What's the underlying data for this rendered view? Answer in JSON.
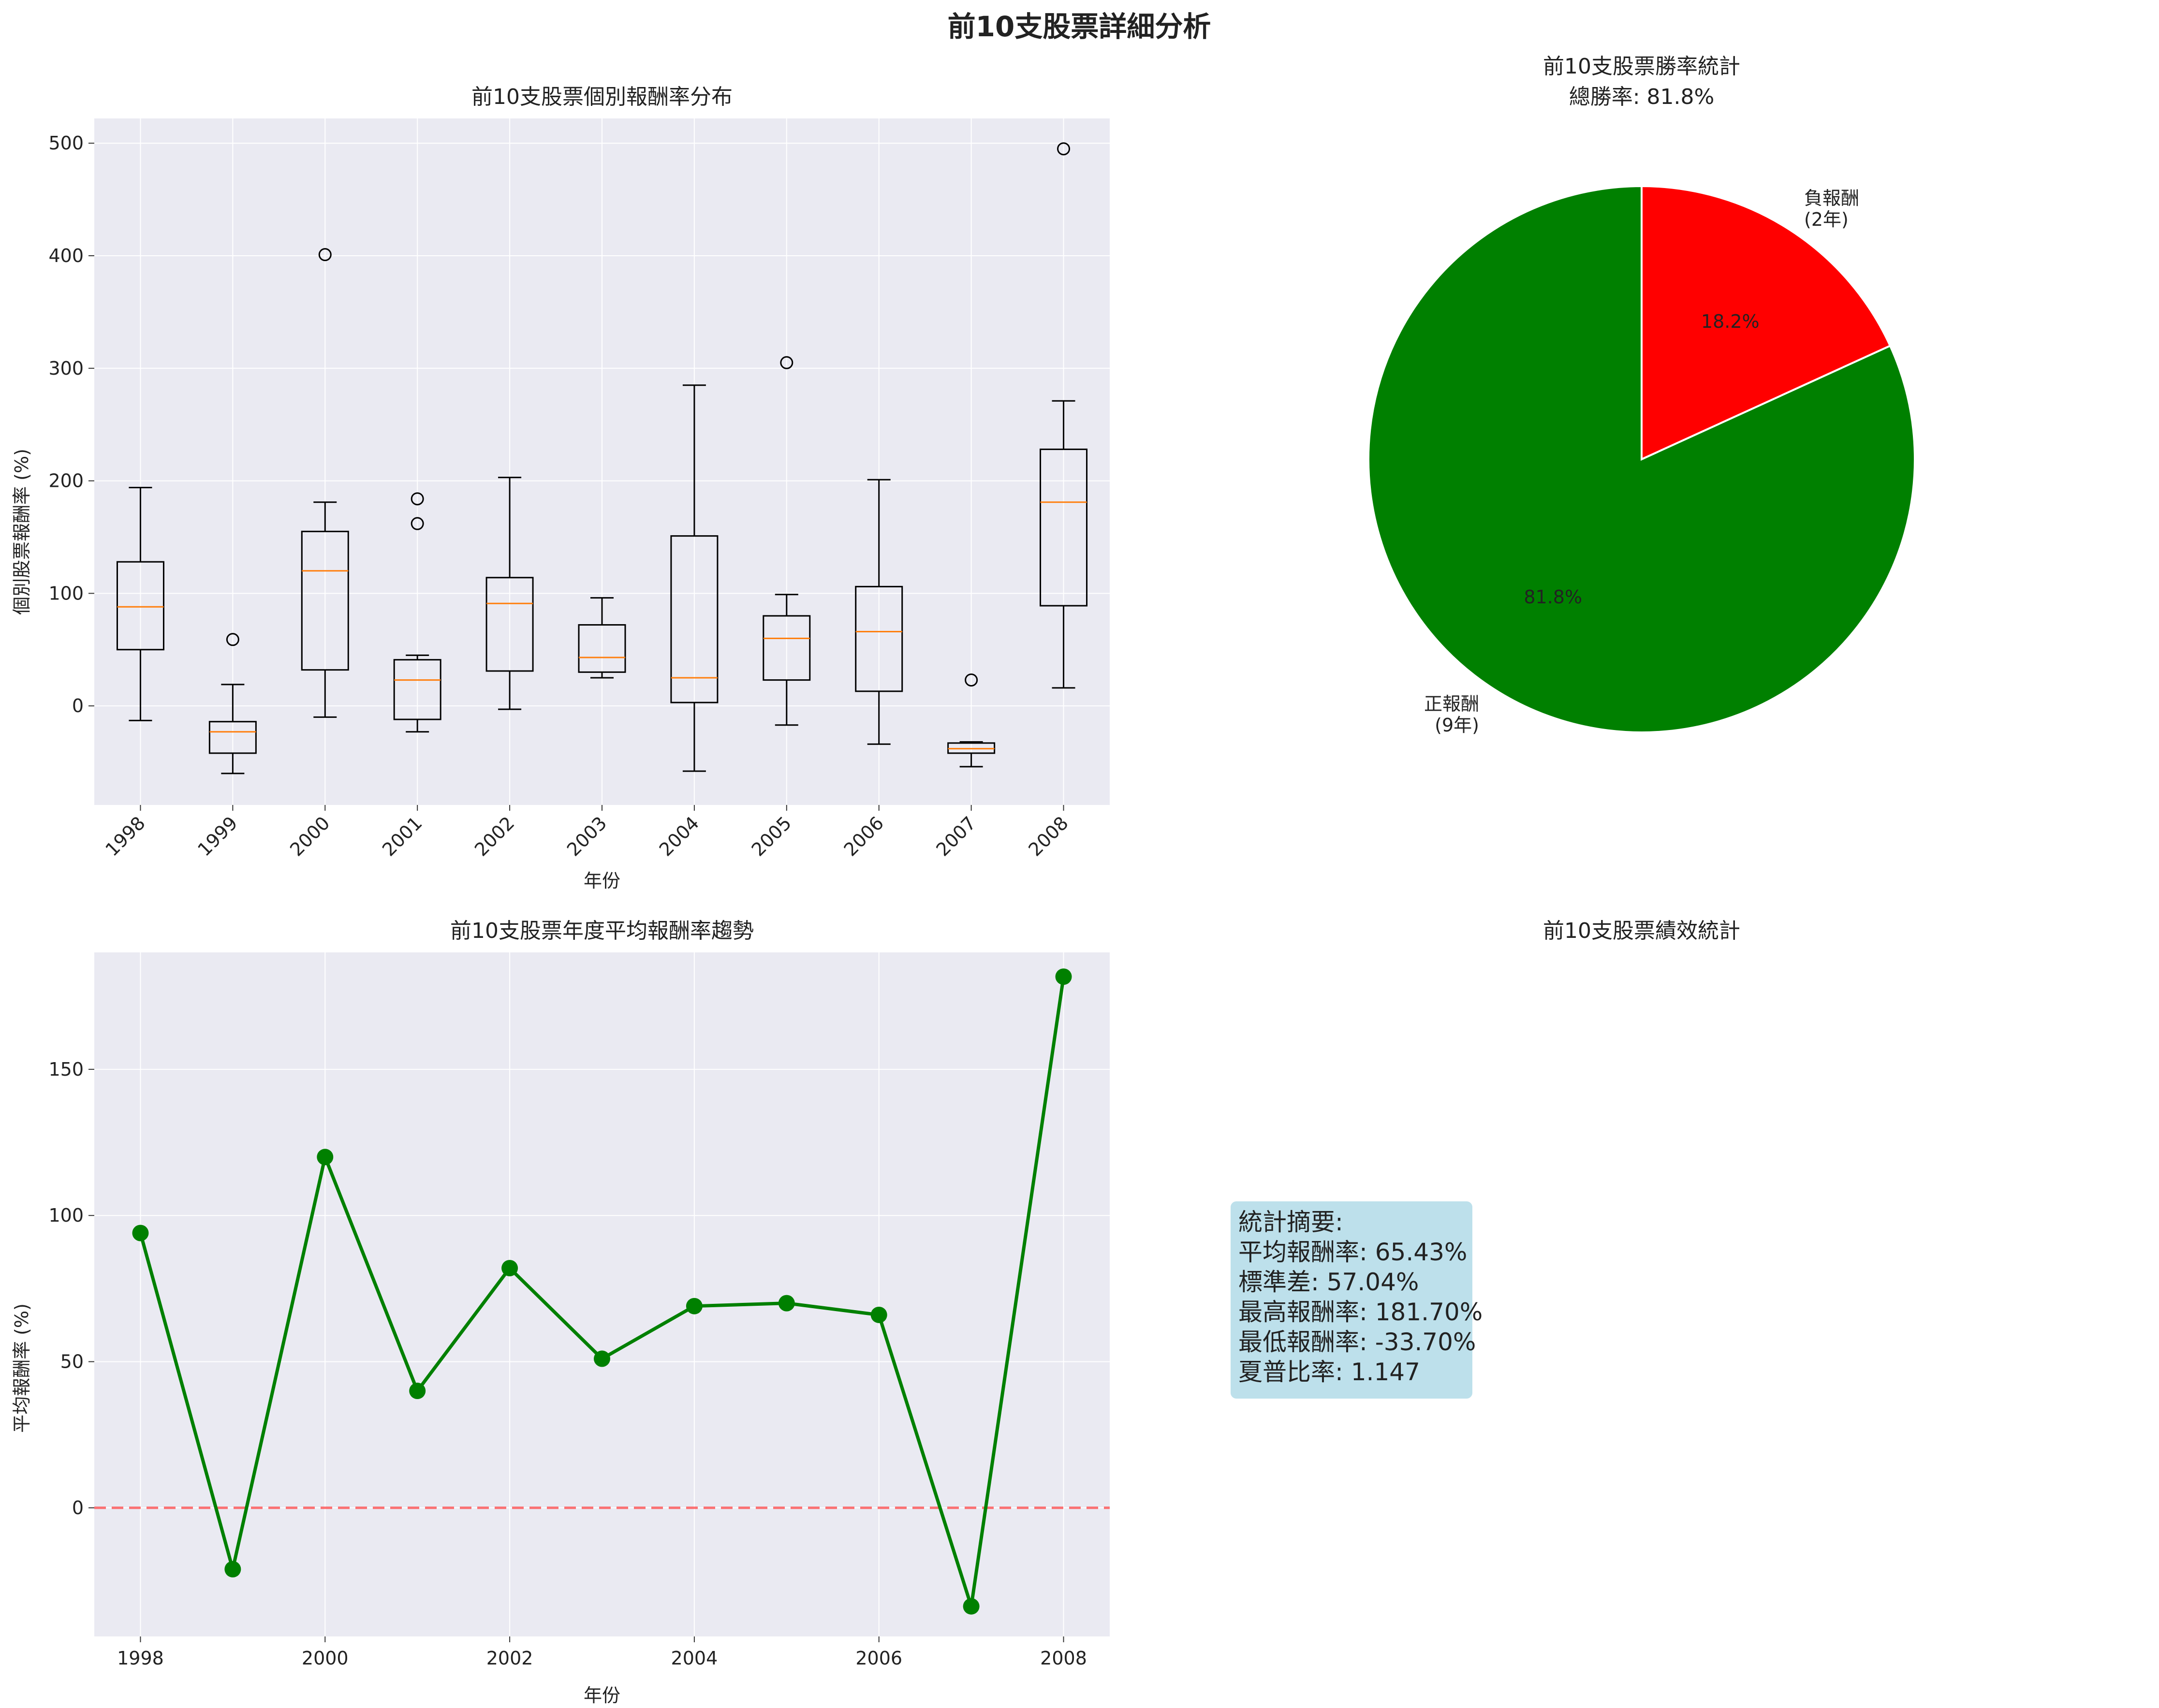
{
  "suptitle": "前10支股票詳細分析",
  "chart_data": [
    {
      "type": "box",
      "title": "前10支股票個別報酬率分布",
      "xlabel": "年份",
      "ylabel": "個別股票報酬率 (%)",
      "ylim": [
        -88,
        522
      ],
      "yticks": [
        0,
        100,
        200,
        300,
        400,
        500
      ],
      "categories": [
        "1998",
        "1999",
        "2000",
        "2001",
        "2002",
        "2003",
        "2004",
        "2005",
        "2006",
        "2007",
        "2008"
      ],
      "boxes": [
        {
          "whislo": -13,
          "q1": 50,
          "med": 88,
          "q3": 128,
          "whishi": 194,
          "fliers": []
        },
        {
          "whislo": -60,
          "q1": -42,
          "med": -23,
          "q3": -14,
          "whishi": 19,
          "fliers": [
            59
          ]
        },
        {
          "whislo": -10,
          "q1": 32,
          "med": 120,
          "q3": 155,
          "whishi": 181,
          "fliers": [
            401
          ]
        },
        {
          "whislo": -23,
          "q1": -12,
          "med": 23,
          "q3": 41,
          "whishi": 45,
          "fliers": [
            162,
            184
          ]
        },
        {
          "whislo": -3,
          "q1": 31,
          "med": 91,
          "q3": 114,
          "whishi": 203,
          "fliers": []
        },
        {
          "whislo": 25,
          "q1": 30,
          "med": 43,
          "q3": 72,
          "whishi": 96,
          "fliers": []
        },
        {
          "whislo": -58,
          "q1": 3,
          "med": 25,
          "q3": 151,
          "whishi": 285,
          "fliers": []
        },
        {
          "whislo": -17,
          "q1": 23,
          "med": 60,
          "q3": 80,
          "whishi": 99,
          "fliers": [
            305
          ]
        },
        {
          "whislo": -34,
          "q1": 13,
          "med": 66,
          "q3": 106,
          "whishi": 201,
          "fliers": []
        },
        {
          "whislo": -54,
          "q1": -42,
          "med": -38,
          "q3": -33,
          "whishi": -32,
          "fliers": [
            23
          ]
        },
        {
          "whislo": 16,
          "q1": 89,
          "med": 181,
          "q3": 228,
          "whishi": 271,
          "fliers": [
            495
          ]
        }
      ]
    },
    {
      "type": "pie",
      "title": "前10支股票勝率統計",
      "subtitle": "總勝率: 81.8%",
      "slices": [
        {
          "label": "負報酬",
          "sublabel": "(2年)",
          "value": 2,
          "pct": "18.2%",
          "color": "#ff0000"
        },
        {
          "label": "正報酬",
          "sublabel": "(9年)",
          "value": 9,
          "pct": "81.8%",
          "color": "#008000"
        }
      ]
    },
    {
      "type": "line",
      "title": "前10支股票年度平均報酬率趨勢",
      "xlabel": "年份",
      "ylabel": "平均報酬率 (%)",
      "xlim": [
        1997.5,
        2008.5
      ],
      "ylim": [
        -44,
        190
      ],
      "xticks": [
        1998,
        2000,
        2002,
        2004,
        2006,
        2008
      ],
      "yticks": [
        0,
        50,
        100,
        150
      ],
      "x": [
        1998,
        1999,
        2000,
        2001,
        2002,
        2003,
        2004,
        2005,
        2006,
        2007,
        2008
      ],
      "y": [
        94,
        -21,
        120,
        40,
        82,
        51,
        69,
        70,
        66,
        -33.7,
        181.7
      ],
      "color": "#008000",
      "ref_line": {
        "y": 0,
        "color": "#ff0000"
      }
    },
    {
      "type": "table",
      "title": "前10支股票績效統計",
      "lines": [
        "統計摘要:",
        "平均報酬率: 65.43%",
        "標準差: 57.04%",
        "最高報酬率: 181.70%",
        "最低報酬率: -33.70%",
        "夏普比率: 1.147"
      ],
      "box_color": "#add8e6"
    }
  ]
}
